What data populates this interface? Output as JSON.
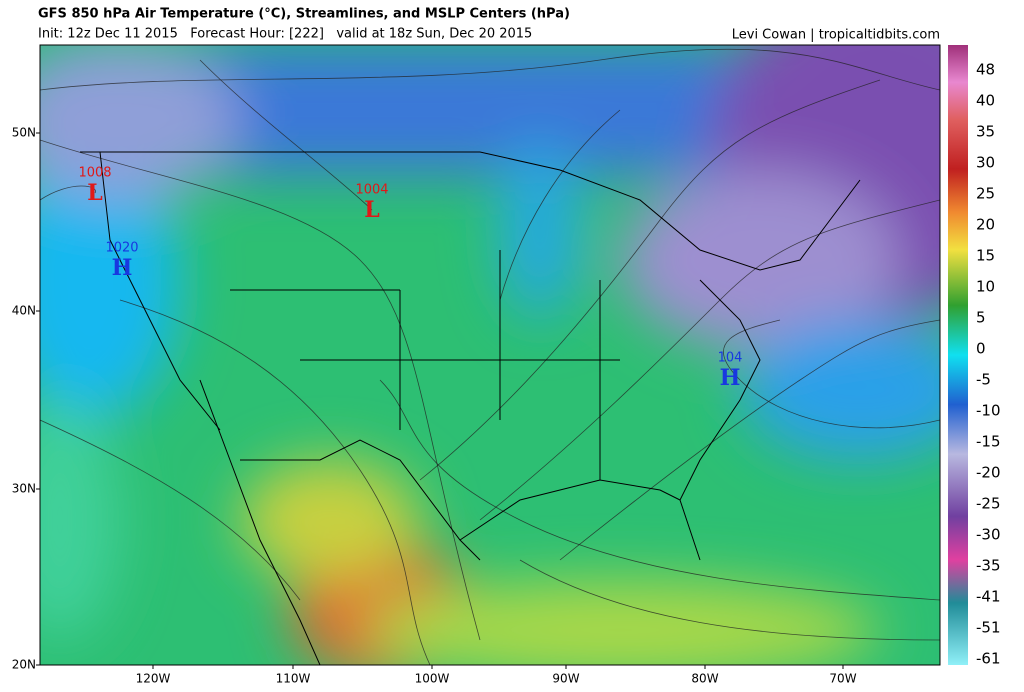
{
  "header": {
    "title": "GFS 850 hPa Air Temperature (°C), Streamlines, and MSLP Centers (hPa)",
    "subtitle": "Init: 12z Dec 11 2015   Forecast Hour: [222]   valid at 18z Sun, Dec 20 2015",
    "credit": "Levi Cowan | tropicaltidbits.com"
  },
  "map": {
    "lat_labels": [
      "50N",
      "40N",
      "30N",
      "20N"
    ],
    "lon_labels": [
      "120W",
      "110W",
      "100W",
      "90W",
      "80W",
      "70W"
    ],
    "centers": [
      {
        "type": "L",
        "value": "1008"
      },
      {
        "type": "L",
        "value": "1004"
      },
      {
        "type": "H",
        "value": "1020"
      },
      {
        "type": "H",
        "value": "104"
      }
    ]
  },
  "colorbar": {
    "labels": [
      "48",
      "40",
      "35",
      "30",
      "25",
      "20",
      "15",
      "10",
      "5",
      "0",
      "-5",
      "-10",
      "-15",
      "-20",
      "-25",
      "-30",
      "-35",
      "-41",
      "-51",
      "-61"
    ]
  }
}
